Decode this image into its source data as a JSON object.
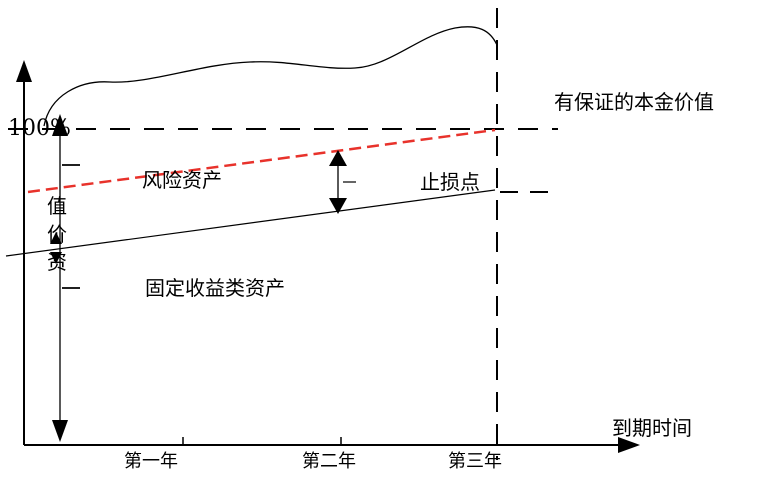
{
  "diagram": {
    "y_top_label": "100%",
    "value_chars": [
      "值",
      "价",
      "资"
    ],
    "x_axis_label": "到期时间",
    "x_ticks": [
      "第一年",
      "第二年",
      "第三年"
    ],
    "guaranteed_label": "有保证的本金价值",
    "risk_asset_label": "风险资产",
    "stop_loss_label": "止损点",
    "fixed_income_label": "固定收益类资产",
    "colors": {
      "line": "#000000",
      "risk_line": "#e8322b"
    }
  }
}
